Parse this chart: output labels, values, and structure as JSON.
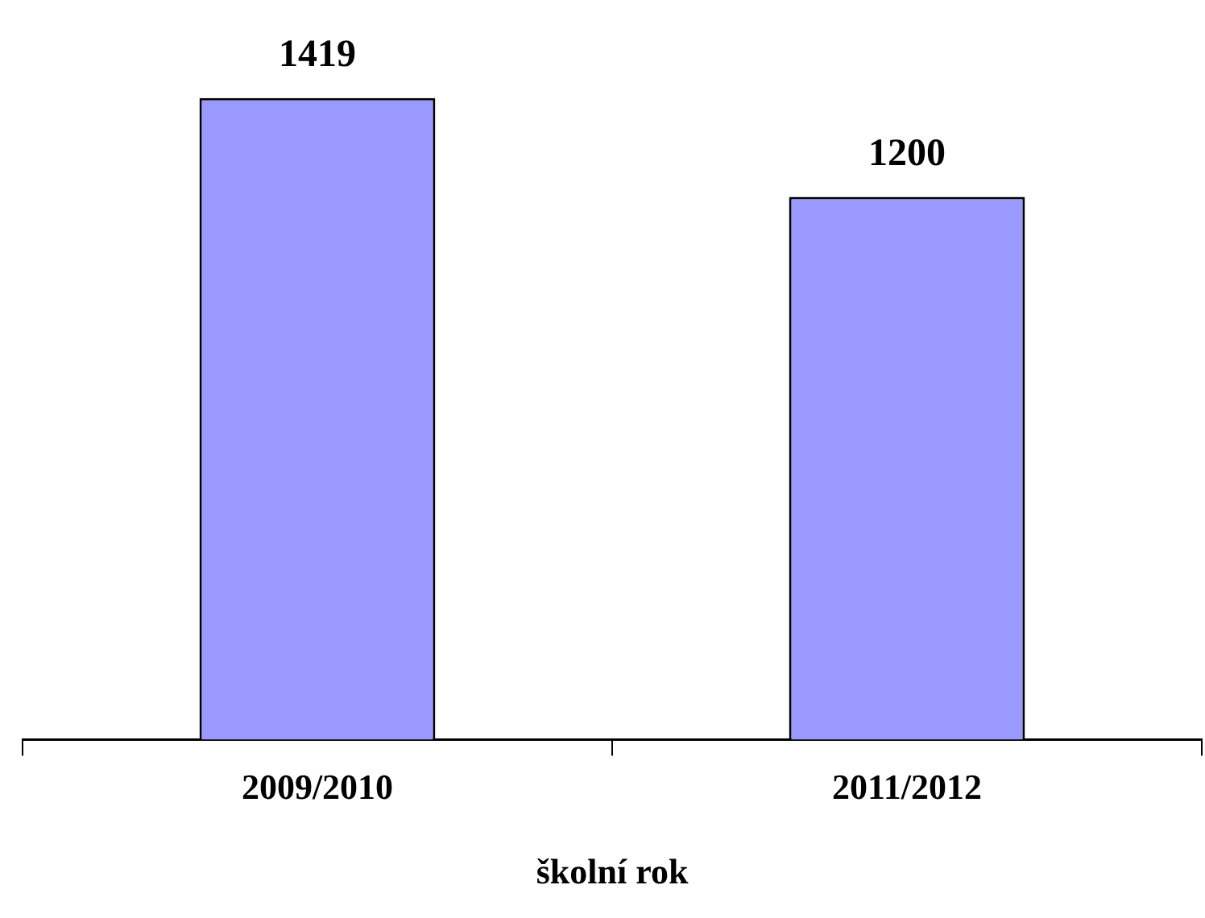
{
  "chart_data": {
    "type": "bar",
    "xlabel": "školní rok",
    "categories": [
      "2009/2010",
      "2011/2012"
    ],
    "values": [
      1419,
      1200
    ],
    "color": "#9999ff",
    "data_labels": true,
    "grid": false,
    "legend": false
  }
}
